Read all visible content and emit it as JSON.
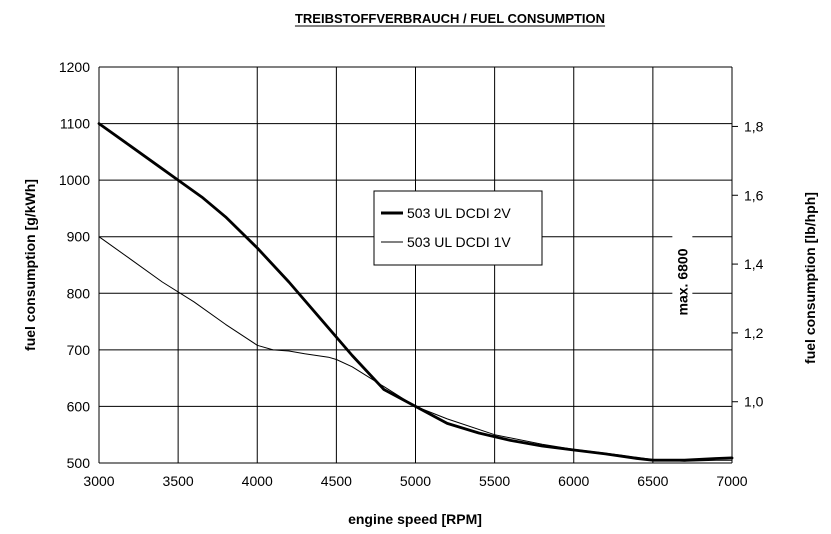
{
  "chart_data": {
    "type": "line",
    "title": "TREIBSTOFFVERBRAUCH / FUEL CONSUMPTION",
    "xlabel": "engine speed [RPM]",
    "ylabel": "fuel consumption [g/kWh]",
    "ylabel_right": "fuel consumption [lb/hph]",
    "xlim": [
      3000,
      7000
    ],
    "ylim": [
      500,
      1200
    ],
    "x_ticks": [
      "3000",
      "3500",
      "4000",
      "4500",
      "5000",
      "5500",
      "6000",
      "6500",
      "7000"
    ],
    "y_ticks": [
      "500",
      "600",
      "700",
      "800",
      "900",
      "1000",
      "1100",
      "1200"
    ],
    "y2_ticks": [
      {
        "label": "1,0",
        "value": 1.0
      },
      {
        "label": "1,2",
        "value": 1.2
      },
      {
        "label": "1,4",
        "value": 1.4
      },
      {
        "label": "1,6",
        "value": 1.6
      },
      {
        "label": "1,8",
        "value": 1.8
      }
    ],
    "y2_factor_g_per_lb": 608.3,
    "grid": true,
    "legend_position": "center-right",
    "annotation": {
      "text": "max. 6800",
      "x": 6800
    },
    "series": [
      {
        "name": "503 UL DCDI 2V",
        "style": "thick",
        "x": [
          3000,
          3200,
          3400,
          3500,
          3650,
          3800,
          4000,
          4200,
          4400,
          4600,
          4800,
          5000,
          5200,
          5400,
          5600,
          5800,
          6000,
          6200,
          6400,
          6500,
          6700,
          6900,
          7000
        ],
        "y": [
          1100,
          1060,
          1020,
          1000,
          970,
          935,
          880,
          820,
          755,
          690,
          630,
          600,
          570,
          553,
          540,
          530,
          523,
          516,
          508,
          505,
          505,
          508,
          509
        ]
      },
      {
        "name": "503 UL DCDI 1V",
        "style": "thin",
        "x": [
          3000,
          3200,
          3400,
          3600,
          3800,
          4000,
          4100,
          4200,
          4300,
          4450,
          4500,
          4600,
          4800,
          5000,
          5200,
          5500,
          5800,
          6000,
          6300,
          6500,
          6700,
          6900,
          7000
        ],
        "y": [
          900,
          860,
          820,
          785,
          745,
          708,
          700,
          698,
          693,
          687,
          683,
          670,
          635,
          600,
          578,
          550,
          533,
          524,
          514,
          506,
          503,
          505,
          505
        ]
      }
    ]
  }
}
